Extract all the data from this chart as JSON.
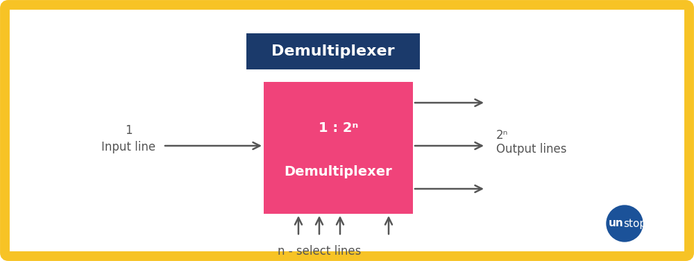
{
  "bg_color": "#ffffff",
  "border_color": "#f7c325",
  "border_linewidth": 10,
  "title_box_color": "#1b3a6b",
  "title_text": "Demultiplexer",
  "title_text_color": "#ffffff",
  "title_fontsize": 16,
  "demux_box_color": "#f0437a",
  "demux_label_top": "1 : 2ⁿ",
  "demux_label_bot": "Demultiplexer",
  "demux_text_color": "#ffffff",
  "demux_fontsize": 14,
  "arrow_color": "#555555",
  "input_label_1": "1",
  "input_label_2": "Input line",
  "output_label_1": "2ⁿ",
  "output_label_2": "Output lines",
  "select_label": "n - select lines",
  "label_color": "#555555",
  "label_fontsize": 12,
  "unstop_circle_color": "#1b5299",
  "unstop_text_un": "un",
  "unstop_text_stop": "stop"
}
